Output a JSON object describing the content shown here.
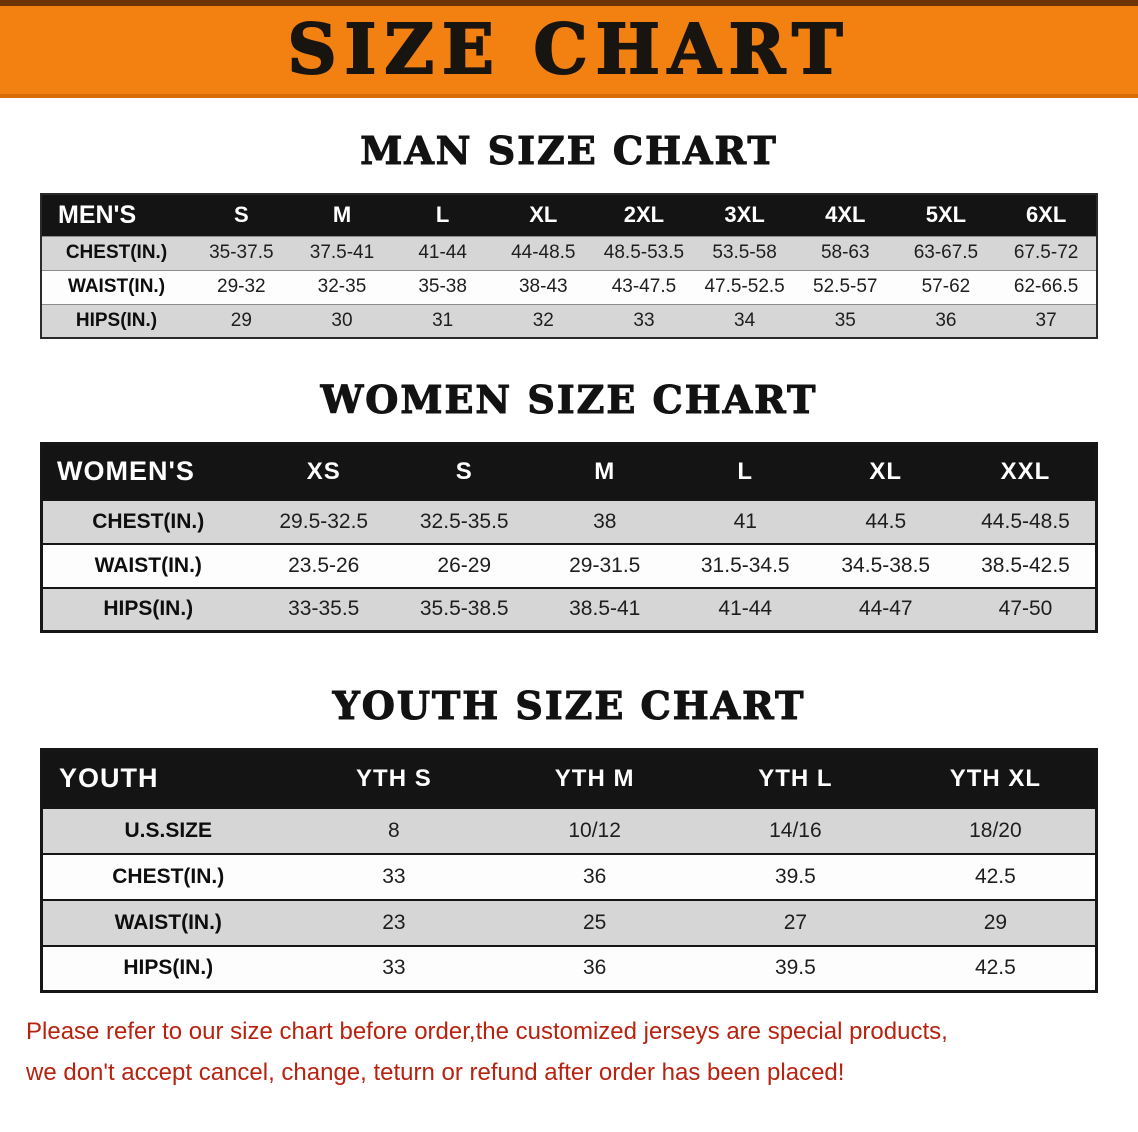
{
  "banner": {
    "title": "SIZE CHART"
  },
  "colors": {
    "banner_orange": "#f28111",
    "header_black": "#141414",
    "row_gray": "#d6d6d6",
    "footer_red": "#b8220f"
  },
  "sections": [
    {
      "heading": "MAN SIZE CHART",
      "table": {
        "header": [
          "MEN'S",
          "S",
          "M",
          "L",
          "XL",
          "2XL",
          "3XL",
          "4XL",
          "5XL",
          "6XL"
        ],
        "rows": [
          [
            "CHEST(IN.)",
            "35-37.5",
            "37.5-41",
            "41-44",
            "44-48.5",
            "48.5-53.5",
            "53.5-58",
            "58-63",
            "63-67.5",
            "67.5-72"
          ],
          [
            "WAIST(IN.)",
            "29-32",
            "32-35",
            "35-38",
            "38-43",
            "43-47.5",
            "47.5-52.5",
            "52.5-57",
            "57-62",
            "62-66.5"
          ],
          [
            "HIPS(IN.)",
            "29",
            "30",
            "31",
            "32",
            "33",
            "34",
            "35",
            "36",
            "37"
          ]
        ]
      }
    },
    {
      "heading": "WOMEN SIZE CHART",
      "table": {
        "header": [
          "WOMEN'S",
          "XS",
          "S",
          "M",
          "L",
          "XL",
          "XXL"
        ],
        "rows": [
          [
            "CHEST(IN.)",
            "29.5-32.5",
            "32.5-35.5",
            "38",
            "41",
            "44.5",
            "44.5-48.5"
          ],
          [
            "WAIST(IN.)",
            "23.5-26",
            "26-29",
            "29-31.5",
            "31.5-34.5",
            "34.5-38.5",
            "38.5-42.5"
          ],
          [
            "HIPS(IN.)",
            "33-35.5",
            "35.5-38.5",
            "38.5-41",
            "41-44",
            "44-47",
            "47-50"
          ]
        ]
      }
    },
    {
      "heading": "YOUTH SIZE CHART",
      "table": {
        "header": [
          "YOUTH",
          "YTH S",
          "YTH M",
          "YTH L",
          "YTH XL"
        ],
        "rows": [
          [
            "U.S.SIZE",
            "8",
            "10/12",
            "14/16",
            "18/20"
          ],
          [
            "CHEST(IN.)",
            "33",
            "36",
            "39.5",
            "42.5"
          ],
          [
            "WAIST(IN.)",
            "23",
            "25",
            "27",
            "29"
          ],
          [
            "HIPS(IN.)",
            "33",
            "36",
            "39.5",
            "42.5"
          ]
        ]
      }
    }
  ],
  "footer": {
    "line1": "Please refer to our size chart before order,the customized jerseys are special products,",
    "line2": "we don't accept cancel, change, teturn or refund after order has been placed!"
  }
}
